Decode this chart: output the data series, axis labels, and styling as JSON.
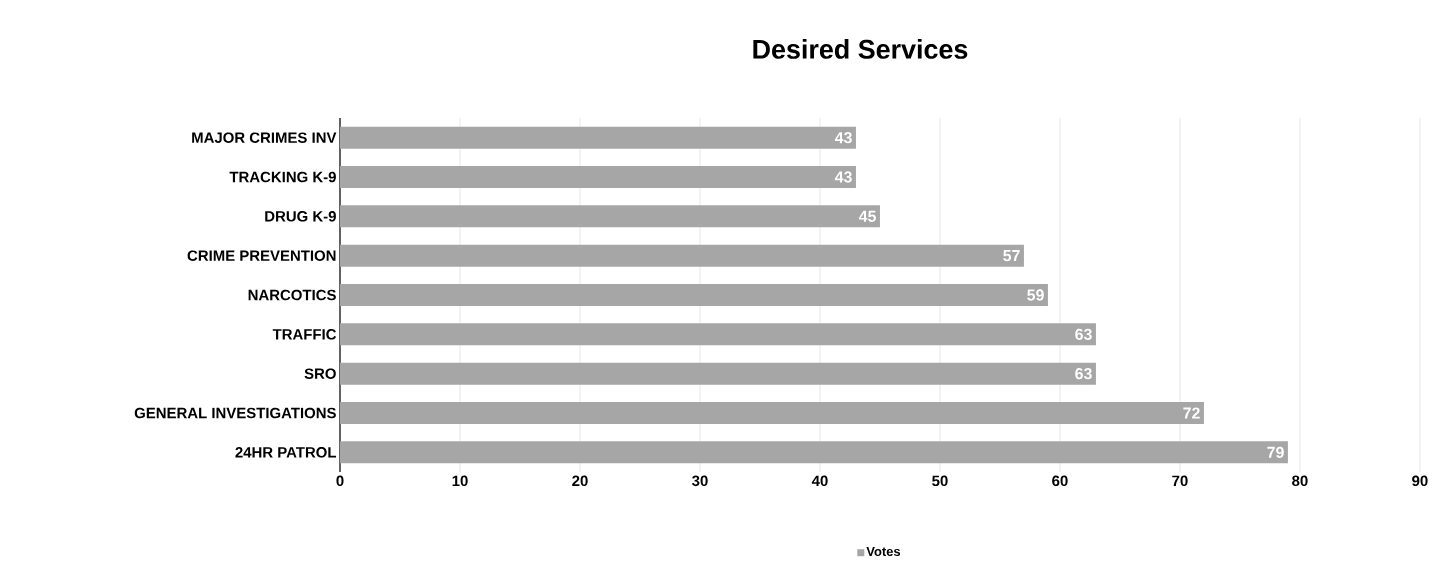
{
  "chart_data": {
    "type": "bar",
    "orientation": "horizontal",
    "title": "Desired Services",
    "categories": [
      "MAJOR CRIMES INV",
      "TRACKING K-9",
      "DRUG K-9",
      "CRIME PREVENTION",
      "NARCOTICS",
      "TRAFFIC",
      "SRO",
      "GENERAL INVESTIGATIONS",
      "24HR PATROL"
    ],
    "series": [
      {
        "name": "Votes",
        "color": "#a6a6a6",
        "values": [
          43,
          43,
          45,
          57,
          59,
          63,
          63,
          72,
          79
        ]
      }
    ],
    "xlim": [
      0,
      90
    ],
    "xticks": [
      0,
      10,
      20,
      30,
      40,
      50,
      60,
      70,
      80,
      90
    ],
    "grid": "x",
    "legend": "bottom",
    "data_labels": true
  }
}
